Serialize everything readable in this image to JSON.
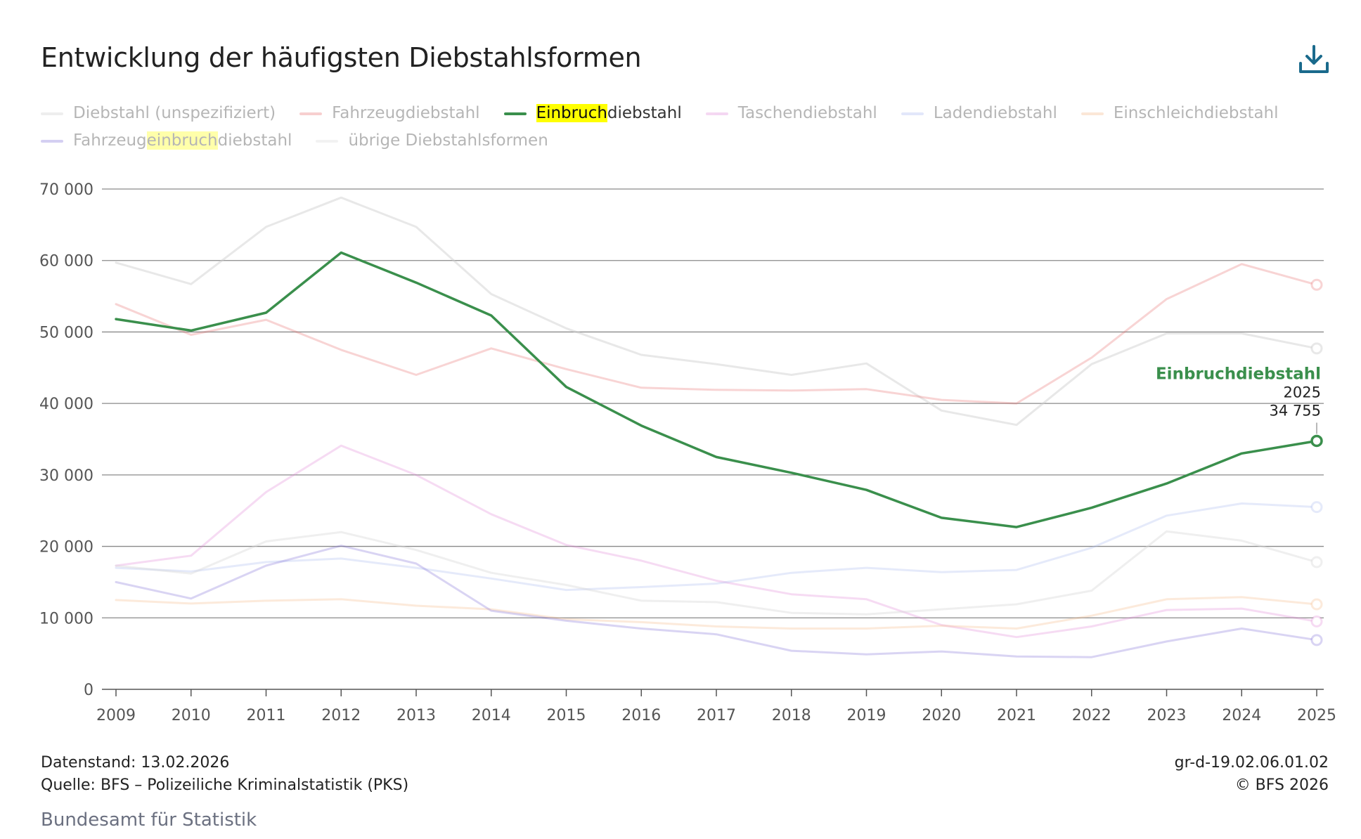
{
  "title": "Entwicklung der häufigsten Diebstahlsformen",
  "download_icon": "download-icon",
  "colors": {
    "active": "#3a8f4c",
    "grid": "#777777",
    "axis": "#555555"
  },
  "legend": [
    {
      "label": "Diebstahl (unspezifiziert)",
      "color": "#cccccc",
      "active": false
    },
    {
      "label": "Fahrzeugdiebstahl",
      "color": "#e87070",
      "active": false
    },
    {
      "label": "Einbruchdiebstahl",
      "color": "#3a8f4c",
      "active": true,
      "hl": "Einbruch",
      "rest": "diebstahl"
    },
    {
      "label": "Taschendiebstahl",
      "color": "#e088d8",
      "active": false
    },
    {
      "label": "Ladendiebstahl",
      "color": "#aab8f0",
      "active": false
    },
    {
      "label": "Einschleichdiebstahl",
      "color": "#f5b888",
      "active": false
    },
    {
      "label": "Fahrzeugeinbruchdiebstahl",
      "color": "#8070d8",
      "active": false,
      "pre": "Fahrzeug",
      "hl": "einbruch",
      "rest": "diebstahl"
    },
    {
      "label": "übrige Diebstahlsformen",
      "color": "#d8d8d8",
      "active": false
    }
  ],
  "tooltip": {
    "name": "Einbruchdiebstahl",
    "year": "2025",
    "value": "34 755"
  },
  "chart_data": {
    "type": "line",
    "x": [
      2009,
      2010,
      2011,
      2012,
      2013,
      2014,
      2015,
      2016,
      2017,
      2018,
      2019,
      2020,
      2021,
      2022,
      2023,
      2024,
      2025
    ],
    "ylim": [
      0,
      70000
    ],
    "yticks": [
      0,
      10000,
      20000,
      30000,
      40000,
      50000,
      60000,
      70000
    ],
    "ytick_labels": [
      "0",
      "10 000",
      "20 000",
      "30 000",
      "40 000",
      "50 000",
      "60 000",
      "70 000"
    ],
    "grid": true,
    "series": [
      {
        "name": "Diebstahl (unspezifiziert)",
        "color": "#cccccc",
        "opacity": 0.45,
        "values": [
          59700,
          56700,
          64700,
          68800,
          64700,
          55300,
          50500,
          46800,
          45500,
          44000,
          45600,
          39000,
          37000,
          45500,
          49800,
          49800,
          47700
        ]
      },
      {
        "name": "Fahrzeugdiebstahl",
        "color": "#e87070",
        "opacity": 0.3,
        "values": [
          53900,
          49600,
          51700,
          47500,
          44000,
          47700,
          44800,
          42200,
          41900,
          41800,
          42000,
          40500,
          40000,
          46400,
          54600,
          59500,
          56600
        ]
      },
      {
        "name": "Taschendiebstahl",
        "color": "#e088d8",
        "opacity": 0.3,
        "values": [
          17300,
          18700,
          27600,
          34100,
          30000,
          24500,
          20200,
          18000,
          15200,
          13300,
          12600,
          9000,
          7300,
          8800,
          11100,
          11300,
          9500
        ]
      },
      {
        "name": "Ladendiebstahl",
        "color": "#aab8f0",
        "opacity": 0.3,
        "values": [
          17000,
          16500,
          17800,
          18300,
          17000,
          15500,
          13900,
          14300,
          14800,
          16300,
          17000,
          16400,
          16700,
          19800,
          24300,
          26000,
          25500
        ]
      },
      {
        "name": "Einschleichdiebstahl",
        "color": "#f5b888",
        "opacity": 0.3,
        "values": [
          12500,
          12000,
          12400,
          12600,
          11700,
          11200,
          9800,
          9400,
          8800,
          8500,
          8500,
          8900,
          8500,
          10300,
          12600,
          12900,
          11900
        ]
      },
      {
        "name": "Fahrzeugeinbruchdiebstahl",
        "color": "#8070d8",
        "opacity": 0.3,
        "values": [
          15000,
          12700,
          17300,
          20100,
          17600,
          11000,
          9600,
          8500,
          7700,
          5400,
          4900,
          5300,
          4600,
          4500,
          6700,
          8500,
          6900
        ]
      },
      {
        "name": "übrige Diebstahlsformen",
        "color": "#d8d8d8",
        "opacity": 0.4,
        "values": [
          17300,
          16200,
          20700,
          22000,
          19500,
          16300,
          14600,
          12400,
          12200,
          10700,
          10500,
          11200,
          11900,
          13800,
          22100,
          20800,
          17800
        ]
      },
      {
        "name": "Einbruchdiebstahl",
        "color": "#3a8f4c",
        "opacity": 1,
        "active": true,
        "values": [
          51800,
          50200,
          52700,
          61100,
          56900,
          52300,
          42300,
          36900,
          32500,
          30300,
          27900,
          24000,
          22700,
          25400,
          28800,
          33000,
          34755
        ]
      }
    ]
  },
  "footer": {
    "datenstand": "Datenstand: 13.02.2026",
    "quelle": "Quelle: BFS – Polizeiliche Kriminalstatistik (PKS)",
    "id": "gr-d-19.02.06.01.02",
    "copyright": "© BFS 2026",
    "org": "Bundesamt für Statistik"
  }
}
